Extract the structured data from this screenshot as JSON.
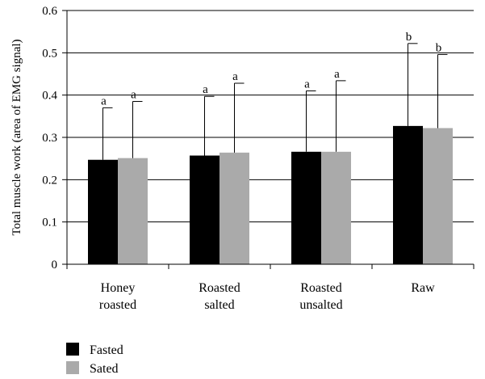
{
  "chart_data": {
    "type": "bar",
    "title": "",
    "xlabel": "",
    "ylabel": "Total muscle work (area of EMG signal)",
    "ylim": [
      0,
      0.6
    ],
    "yticks": [
      "0",
      "0.1",
      "0.2",
      "0.3",
      "0.4",
      "0.5",
      "0.6"
    ],
    "categories": [
      [
        "Honey",
        "roasted"
      ],
      [
        "Roasted",
        "salted"
      ],
      [
        "Roasted",
        "unsalted"
      ],
      [
        "Raw"
      ]
    ],
    "series": [
      {
        "name": "Fasted",
        "color": "#000000",
        "values": [
          0.247,
          0.257,
          0.266,
          0.327
        ],
        "error_upper": [
          0.37,
          0.397,
          0.41,
          0.522
        ],
        "significance": [
          "a",
          "a",
          "a",
          "b"
        ]
      },
      {
        "name": "Sated",
        "color": "#aaaaaa",
        "values": [
          0.251,
          0.264,
          0.266,
          0.322
        ],
        "error_upper": [
          0.385,
          0.428,
          0.434,
          0.496
        ],
        "significance": [
          "a",
          "a",
          "a",
          "b"
        ]
      }
    ],
    "grid": true,
    "legend_position": "bottom-left"
  }
}
